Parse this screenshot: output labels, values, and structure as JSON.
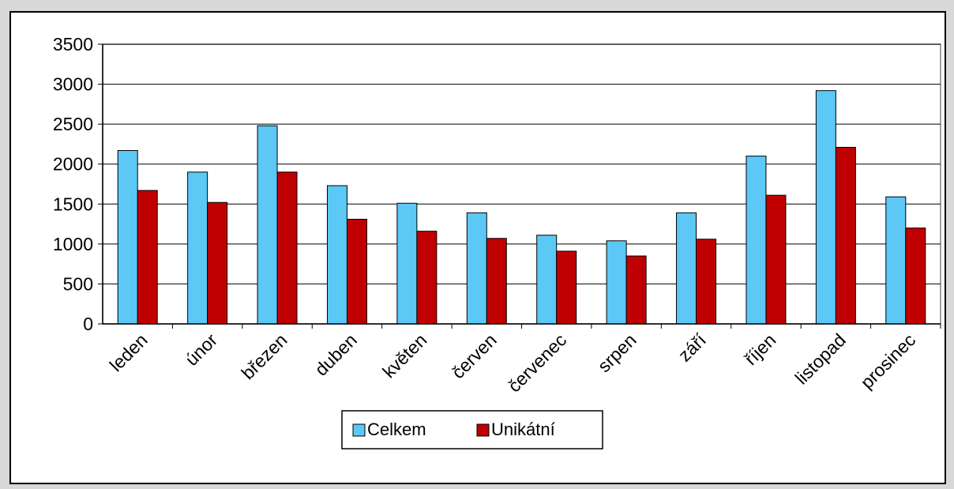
{
  "chart_data": {
    "type": "bar",
    "categories": [
      "leden",
      "únor",
      "březen",
      "duben",
      "květen",
      "červen",
      "červenec",
      "srpen",
      "září",
      "říjen",
      "listopad",
      "prosinec"
    ],
    "series": [
      {
        "name": "Celkem",
        "color": "#5bc8f5",
        "values": [
          2170,
          1900,
          2480,
          1730,
          1510,
          1390,
          1110,
          1040,
          1390,
          2100,
          2920,
          1590
        ]
      },
      {
        "name": "Unikátní",
        "color": "#c00000",
        "values": [
          1670,
          1520,
          1900,
          1310,
          1160,
          1070,
          910,
          850,
          1060,
          1610,
          2210,
          1200
        ]
      }
    ],
    "yticks": [
      "0",
      "500",
      "1000",
      "1500",
      "2000",
      "2500",
      "3000",
      "3500"
    ],
    "ylim": [
      0,
      3500
    ],
    "grid": true,
    "legend_position": "bottom"
  }
}
